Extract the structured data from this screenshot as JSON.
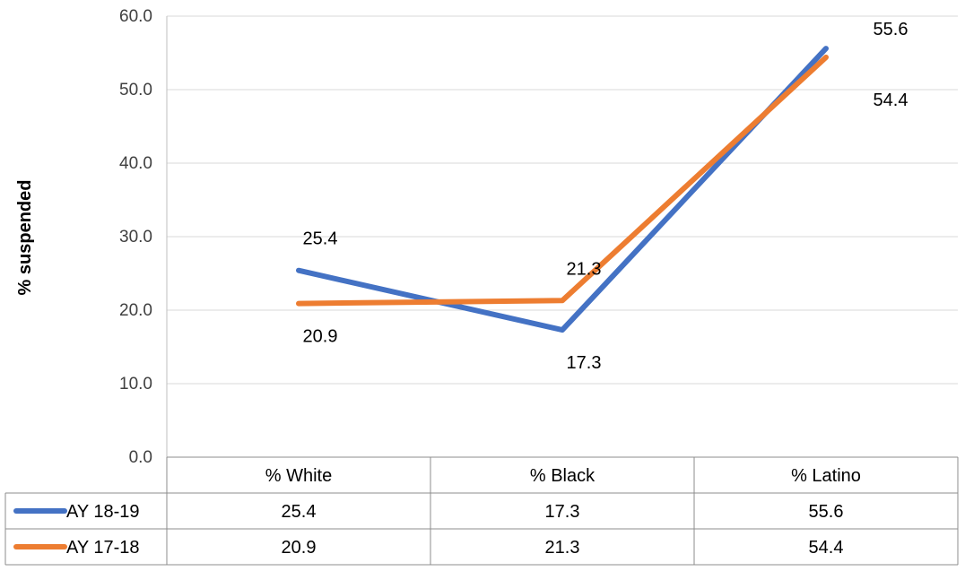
{
  "chart_data": {
    "type": "line",
    "title": "",
    "xlabel": "",
    "ylabel": "% suspended",
    "ylim": [
      0,
      60
    ],
    "yticks": [
      "0.0",
      "10.0",
      "20.0",
      "30.0",
      "40.0",
      "50.0",
      "60.0"
    ],
    "categories": [
      "% White",
      "% Black",
      "% Latino"
    ],
    "series": [
      {
        "name": "AY 18-19",
        "color": "#4472c4",
        "values": [
          25.4,
          17.3,
          55.6
        ],
        "labels": [
          "25.4",
          "17.3",
          "55.6"
        ]
      },
      {
        "name": "AY 17-18",
        "color": "#ed7d31",
        "values": [
          20.9,
          21.3,
          54.4
        ],
        "labels": [
          "20.9",
          "21.3",
          "54.4"
        ]
      }
    ],
    "grid": true,
    "legend": "data table"
  }
}
